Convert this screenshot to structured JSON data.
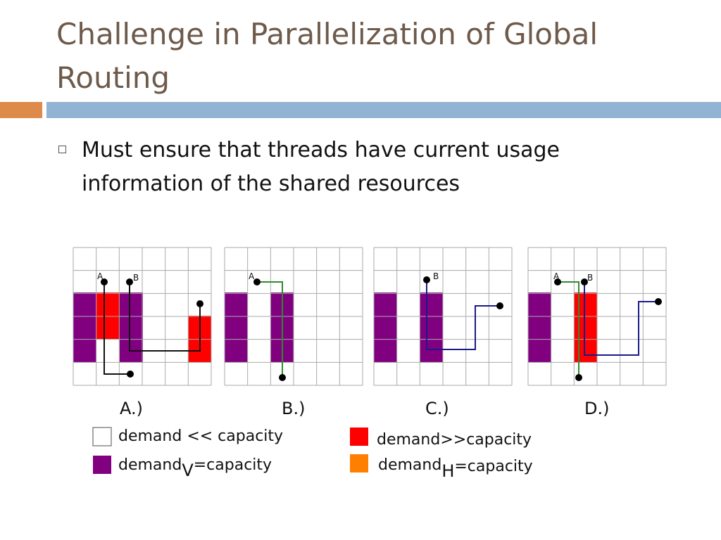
{
  "slide": {
    "title_line1": "Challenge in Parallelization of Global",
    "title_line2": "Routing",
    "bullet": "Must ensure that threads have current usage information of the shared resources"
  },
  "colors": {
    "overflow": "#ff0000",
    "vertical_full": "#800080",
    "horizontal_full": "#ff8000",
    "net_a": "#2e8b2e",
    "net_b": "#1a1a8c",
    "grid_line": "#aaaaaa"
  },
  "panels": [
    {
      "label": "A.)",
      "pins": [
        "A",
        "B"
      ]
    },
    {
      "label": "B.)",
      "pins": [
        "A"
      ]
    },
    {
      "label": "C.)",
      "pins": [
        "B"
      ]
    },
    {
      "label": "D.)",
      "pins": [
        "A",
        "B"
      ]
    }
  ],
  "legend": [
    {
      "text": "demand << capacity",
      "sub": "",
      "rest": "",
      "color": "#ffffff"
    },
    {
      "text": "demand>>capacity",
      "sub": "",
      "rest": "",
      "color": "#ff0000"
    },
    {
      "text": "demand",
      "sub": "V",
      "rest": "=capacity",
      "color": "#800080"
    },
    {
      "text": "demand",
      "sub": "H",
      "rest": "=capacity",
      "color": "#ff8000"
    }
  ]
}
